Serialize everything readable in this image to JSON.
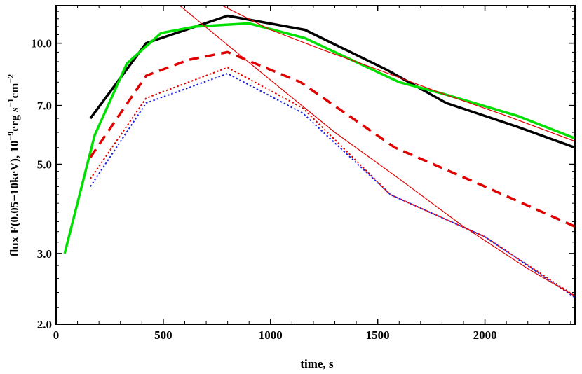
{
  "chart_data": {
    "type": "line",
    "xlabel": "time, s",
    "ylabel": {
      "prefix": "flux F(0.05−10keV), 10",
      "exp1": "−9",
      "mid1": "erg ",
      "s": "s",
      "exp2": "−1",
      "cm": "cm",
      "exp3": "−2"
    },
    "xlim": [
      0,
      2420
    ],
    "ylim": [
      2.0,
      12.4
    ],
    "yscale": "log",
    "grid": false,
    "xticks": [
      {
        "value": 0,
        "label": "0"
      },
      {
        "value": 500,
        "label": "500"
      },
      {
        "value": 1000,
        "label": "1000"
      },
      {
        "value": 1500,
        "label": "1500"
      },
      {
        "value": 2000,
        "label": "2000"
      }
    ],
    "yticks": [
      {
        "value": 2.0,
        "label": "2.0"
      },
      {
        "value": 3.0,
        "label": "3.0"
      },
      {
        "value": 5.0,
        "label": "5.0"
      },
      {
        "value": 7.0,
        "label": "7.0"
      },
      {
        "value": 10.0,
        "label": "10.0"
      }
    ],
    "series": [
      {
        "color": "#000000",
        "style": "solid",
        "width": 3.5,
        "x": [
          160,
          420,
          800,
          1160,
          1540,
          1820,
          2150,
          2420
        ],
        "y": [
          6.5,
          10.0,
          11.7,
          10.8,
          8.6,
          7.1,
          6.2,
          5.5
        ]
      },
      {
        "color": "#00e000",
        "style": "solid",
        "width": 3.5,
        "x": [
          40,
          180,
          330,
          490,
          650,
          900,
          1160,
          1600,
          1800,
          2150,
          2420
        ],
        "y": [
          3.0,
          5.9,
          8.9,
          10.6,
          11.0,
          11.2,
          10.3,
          8.0,
          7.5,
          6.6,
          5.8
        ]
      },
      {
        "color": "#e00000",
        "style": "dashed",
        "width": 3.5,
        "x": [
          160,
          420,
          620,
          800,
          1140,
          1580,
          2000,
          2420
        ],
        "y": [
          5.2,
          8.3,
          9.1,
          9.5,
          8.0,
          5.5,
          4.4,
          3.5
        ]
      },
      {
        "color": "#e00000",
        "style": "dotted",
        "width": 2,
        "x": [
          160,
          420,
          800,
          1150,
          1560,
          2000,
          2420
        ],
        "y": [
          4.6,
          7.3,
          8.7,
          6.9,
          4.2,
          3.3,
          2.35
        ]
      },
      {
        "color": "#2020e0",
        "style": "dotted",
        "width": 2,
        "x": [
          160,
          420,
          800,
          1150,
          1560,
          2000,
          2420
        ],
        "y": [
          4.4,
          7.1,
          8.4,
          6.7,
          4.2,
          3.3,
          2.33
        ]
      },
      {
        "color": "#e00000",
        "style": "solid",
        "width": 1.2,
        "x": [
          530,
          800,
          1050,
          1300,
          1600,
          1900,
          2200,
          2420
        ],
        "y": [
          13.0,
          9.9,
          7.7,
          6.0,
          4.6,
          3.5,
          2.75,
          2.35
        ]
      },
      {
        "color": "#e00000",
        "style": "solid",
        "width": 1.2,
        "x": [
          750,
          1000,
          1250,
          1500,
          1800,
          2100,
          2420
        ],
        "y": [
          12.6,
          10.8,
          9.6,
          8.6,
          7.5,
          6.6,
          5.7
        ]
      }
    ]
  }
}
